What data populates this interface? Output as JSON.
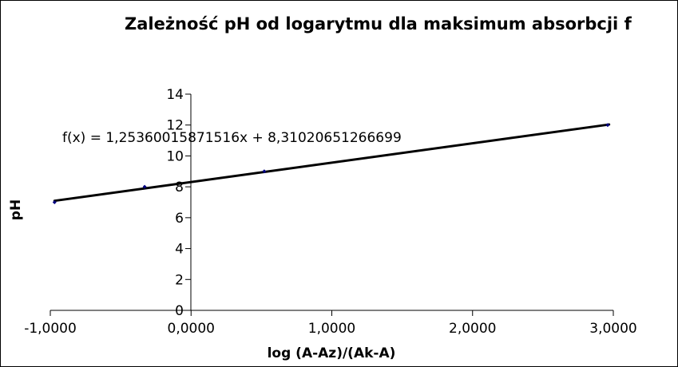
{
  "chart_data": {
    "type": "scatter",
    "title": "Zależność pH od logarytmu dla maksimum absorbcji f",
    "xlabel": "log (A-Az)/(Ak-A)",
    "ylabel": "pH",
    "xlim": [
      -1,
      3
    ],
    "ylim": [
      0,
      14
    ],
    "x_ticks": [
      -1,
      0,
      1,
      2,
      3
    ],
    "x_tick_labels": [
      "-1,0000",
      "0,0000",
      "1,0000",
      "2,0000",
      "3,0000"
    ],
    "y_ticks": [
      0,
      2,
      4,
      6,
      8,
      10,
      12,
      14
    ],
    "y_tick_labels": [
      "0",
      "2",
      "4",
      "6",
      "8",
      "10",
      "12",
      "14"
    ],
    "grid": false,
    "legend": "none",
    "series": [
      {
        "x": [
          -0.97,
          -0.33,
          0.52,
          2.96
        ],
        "y": [
          7.0,
          8.0,
          9.0,
          12.0
        ],
        "marker_color": "#000080"
      }
    ],
    "trendline": {
      "slope": 1.25360015871516,
      "intercept": 8.31020651266699,
      "x_range": [
        -0.97,
        2.97
      ],
      "color": "#000000",
      "equation": "f(x) = 1,25360015871516x + 8,31020651266699"
    }
  }
}
